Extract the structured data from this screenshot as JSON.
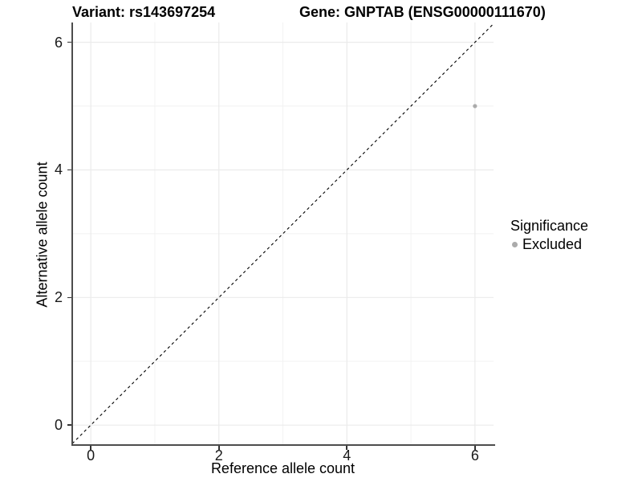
{
  "titles": {
    "left": "Variant: rs143697254",
    "right": "Gene: GNPTAB (ENSG00000111670)"
  },
  "chart_data": {
    "type": "scatter",
    "title": "Variant: rs143697254 — Gene: GNPTAB (ENSG00000111670)",
    "xlabel": "Reference allele count",
    "ylabel": "Alternative allele count",
    "xlim": [
      -0.29,
      6.29
    ],
    "ylim": [
      -0.3,
      6.31
    ],
    "x_ticks": [
      0,
      2,
      4,
      6
    ],
    "y_ticks": [
      0,
      2,
      4,
      6
    ],
    "x_minor_ticks": [
      1,
      3,
      5
    ],
    "y_minor_ticks": [
      1,
      3,
      5
    ],
    "grid": true,
    "series": [
      {
        "name": "Excluded",
        "color": "#ababab",
        "marker": "circle",
        "marker_radius": 2.6,
        "points": [
          {
            "x": 6,
            "y": 5
          }
        ]
      }
    ],
    "reference_line": {
      "type": "identity",
      "linestyle": "dashed",
      "color": "#000000"
    },
    "legend": {
      "title": "Significance",
      "position": "right",
      "items": [
        {
          "label": "Excluded",
          "color": "#ababab",
          "marker": "circle"
        }
      ]
    }
  },
  "colors": {
    "background": "#ffffff",
    "axis_line": "#4d4d4d",
    "tick_mark": "#333333",
    "grid_major": "#ebebeb",
    "grid_minor": "#f2f2f2",
    "point": "#ababab",
    "dashed_line": "#000000",
    "text": "#000000"
  }
}
